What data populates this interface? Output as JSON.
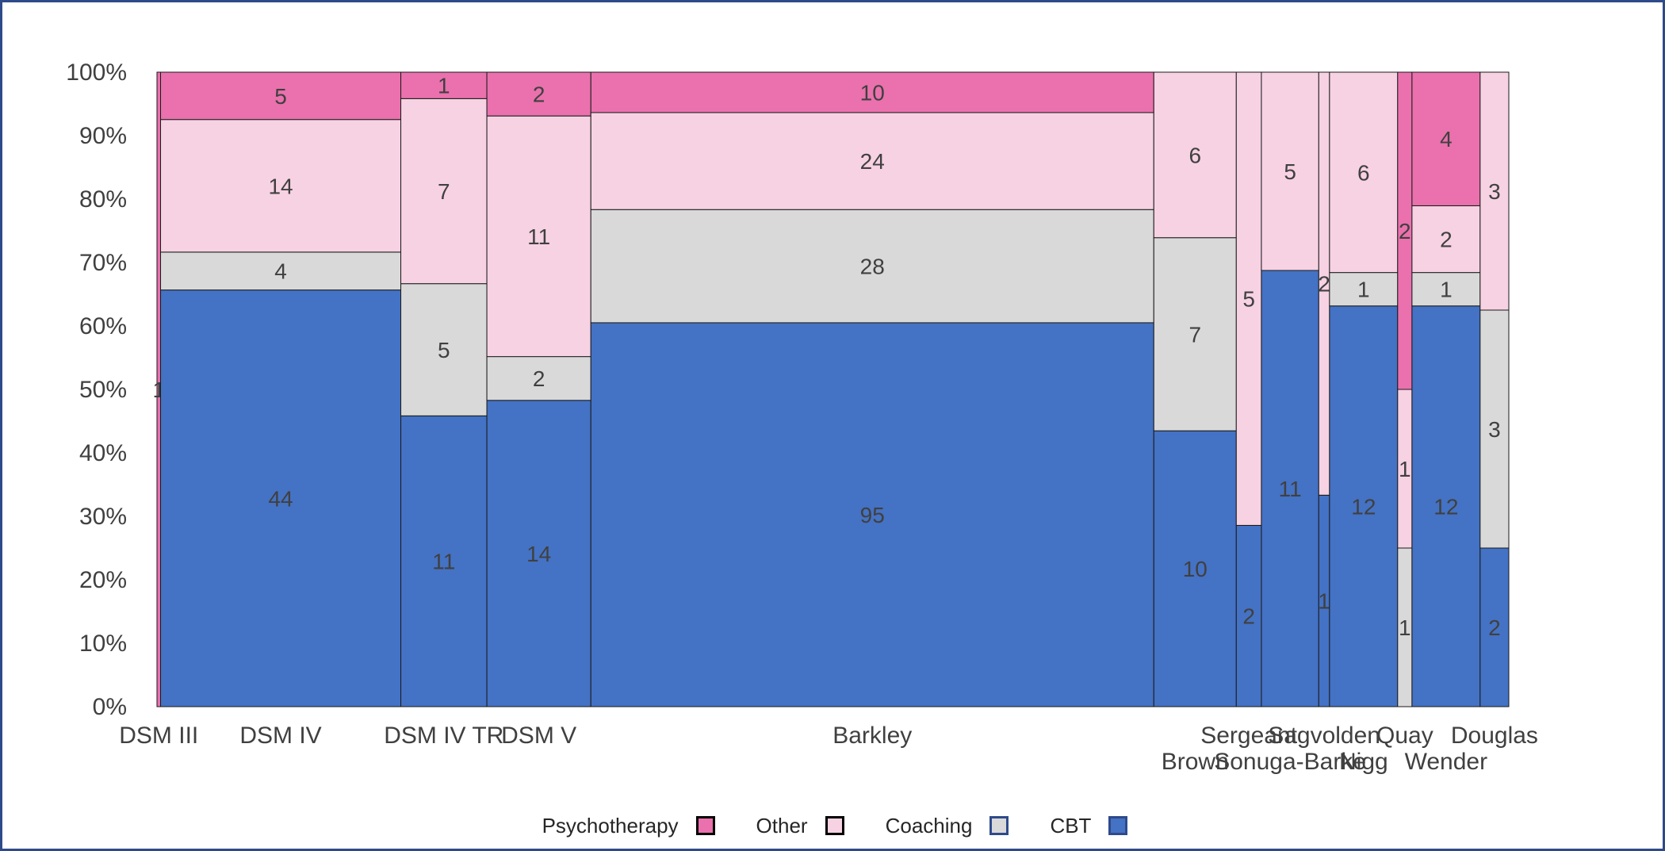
{
  "chart_data": {
    "type": "bar",
    "subtype": "stacked-percent-mosaic",
    "title": "",
    "xlabel": "",
    "ylabel": "",
    "ylim": [
      0,
      100
    ],
    "y_ticks": [
      "0%",
      "10%",
      "20%",
      "30%",
      "40%",
      "50%",
      "60%",
      "70%",
      "80%",
      "90%",
      "100%"
    ],
    "grid": false,
    "legend_position": "bottom",
    "series": [
      {
        "name": "CBT",
        "color": "#4472C4",
        "border": "#2F4A8A"
      },
      {
        "name": "Coaching",
        "color": "#D9D9D9",
        "border": "#2F4A8A"
      },
      {
        "name": "Other",
        "color": "#F7D2E3",
        "border": "#000000"
      },
      {
        "name": "Psychotherapy",
        "color": "#EA71AD",
        "border": "#000000"
      }
    ],
    "legend_order": [
      "Psychotherapy",
      "Other",
      "Coaching",
      "CBT"
    ],
    "categories": [
      {
        "name": "DSM III",
        "counts": [
          0,
          0,
          0,
          1
        ],
        "label_row": 0
      },
      {
        "name": "DSM IV",
        "counts": [
          44,
          4,
          14,
          5
        ],
        "label_row": 0
      },
      {
        "name": "DSM IV TR",
        "counts": [
          11,
          5,
          7,
          1
        ],
        "label_row": 0
      },
      {
        "name": "DSM V",
        "counts": [
          14,
          2,
          11,
          2
        ],
        "label_row": 0
      },
      {
        "name": "Barkley",
        "counts": [
          95,
          28,
          24,
          10
        ],
        "label_row": 0
      },
      {
        "name": "Brown",
        "counts": [
          10,
          7,
          6,
          0
        ],
        "label_row": 1
      },
      {
        "name": "Sergeant",
        "counts": [
          2,
          0,
          5,
          0
        ],
        "label_row": 0
      },
      {
        "name": "Sonuga-Barke",
        "counts": [
          11,
          0,
          5,
          0
        ],
        "label_row": 1
      },
      {
        "name": "Sagvolden",
        "counts": [
          1,
          0,
          2,
          0
        ],
        "label_row": 0
      },
      {
        "name": "Nigg",
        "counts": [
          12,
          1,
          6,
          0
        ],
        "label_row": 1
      },
      {
        "name": "Quay",
        "counts": [
          0,
          1,
          1,
          2
        ],
        "label_row": 0
      },
      {
        "name": "Wender",
        "counts": [
          12,
          1,
          2,
          4
        ],
        "label_row": 1
      },
      {
        "name": "Douglas",
        "counts": [
          2,
          3,
          3,
          0
        ],
        "label_row": 0
      }
    ]
  }
}
